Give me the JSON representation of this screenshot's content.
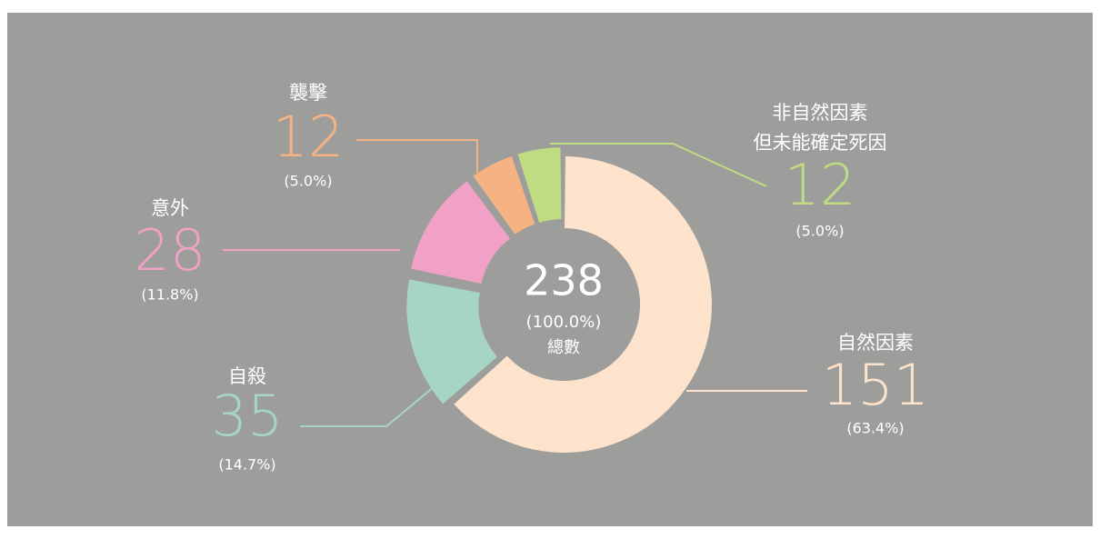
{
  "chart_data": {
    "type": "donut",
    "categories": [
      "自然因素",
      "自殺",
      "意外",
      "襲擊",
      "非自然因素\n但未能確定死因"
    ],
    "values": [
      151,
      35,
      28,
      12,
      12
    ],
    "percent_labels": [
      "(63.4%)",
      "(14.7%)",
      "(11.8%)",
      "(5.0%)",
      "(5.0%)"
    ],
    "colors": [
      "#fde3cb",
      "#a6d6c3",
      "#f0a1c5",
      "#f5b282",
      "#bfdc83"
    ],
    "center": {
      "value": 238,
      "percent_label": "(100.0%)",
      "label": "總數"
    }
  }
}
